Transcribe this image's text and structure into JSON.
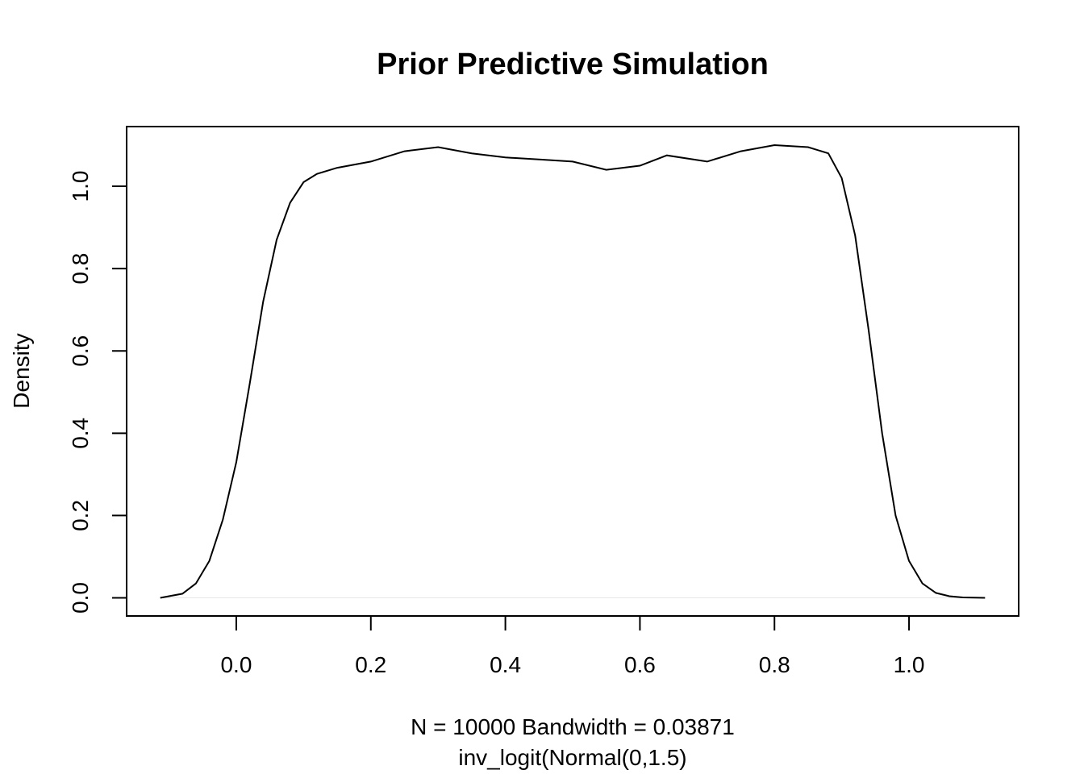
{
  "chart_data": {
    "type": "line",
    "title": "Prior Predictive Simulation",
    "xlabel_line1": "N = 10000   Bandwidth = 0.03871",
    "xlabel_line2": "inv_logit(Normal(0,1.5)",
    "ylabel": "Density",
    "xlim": [
      -0.163,
      1.163
    ],
    "ylim": [
      -0.044,
      1.145
    ],
    "x_ticks": [
      0.0,
      0.2,
      0.4,
      0.6,
      0.8,
      1.0
    ],
    "x_tick_labels": [
      "0.0",
      "0.2",
      "0.4",
      "0.6",
      "0.8",
      "1.0"
    ],
    "y_ticks": [
      0.0,
      0.2,
      0.4,
      0.6,
      0.8,
      1.0
    ],
    "y_tick_labels": [
      "0.0",
      "0.2",
      "0.4",
      "0.6",
      "0.8",
      "1.0"
    ],
    "series": [
      {
        "x": [
          -0.113,
          -0.08,
          -0.06,
          -0.04,
          -0.02,
          0.0,
          0.02,
          0.04,
          0.06,
          0.08,
          0.1,
          0.12,
          0.15,
          0.2,
          0.25,
          0.3,
          0.35,
          0.4,
          0.45,
          0.5,
          0.55,
          0.6,
          0.64,
          0.7,
          0.75,
          0.8,
          0.85,
          0.88,
          0.9,
          0.92,
          0.94,
          0.96,
          0.98,
          1.0,
          1.02,
          1.04,
          1.06,
          1.08,
          1.113
        ],
        "y": [
          0.0,
          0.01,
          0.035,
          0.09,
          0.19,
          0.33,
          0.52,
          0.72,
          0.87,
          0.96,
          1.01,
          1.03,
          1.045,
          1.06,
          1.085,
          1.095,
          1.08,
          1.07,
          1.065,
          1.06,
          1.04,
          1.05,
          1.075,
          1.06,
          1.085,
          1.1,
          1.095,
          1.08,
          1.02,
          0.88,
          0.65,
          0.4,
          0.2,
          0.09,
          0.035,
          0.012,
          0.004,
          0.001,
          0.0
        ]
      }
    ]
  }
}
